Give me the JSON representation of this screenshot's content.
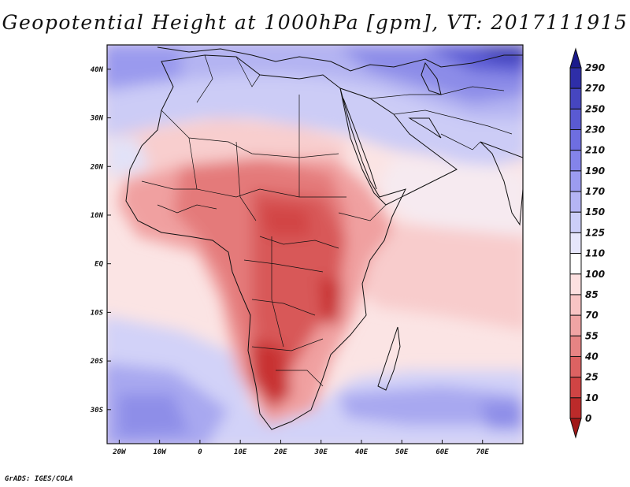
{
  "title": "Geopotential Height at 1000hPa [gpm], VT: 2017111915",
  "footer": "GrADS: IGES/COLA",
  "chart_data": {
    "type": "heatmap",
    "variable": "Geopotential Height at 1000hPa",
    "units": "gpm",
    "valid_time": "2017111915",
    "lon_range": [
      -23,
      80
    ],
    "lat_range": [
      -37,
      45
    ],
    "x_ticks": [
      "20W",
      "10W",
      "0",
      "10E",
      "20E",
      "30E",
      "40E",
      "50E",
      "60E",
      "70E"
    ],
    "y_ticks": [
      "40N",
      "30N",
      "20N",
      "10N",
      "EQ",
      "10S",
      "20S",
      "30S"
    ],
    "colorbar": {
      "levels": [
        "290",
        "270",
        "250",
        "230",
        "210",
        "190",
        "170",
        "150",
        "125",
        "110",
        "100",
        "85",
        "70",
        "55",
        "40",
        "25",
        "10",
        "0"
      ],
      "colors": [
        "#1a1a8c",
        "#2e2ea8",
        "#4646c0",
        "#5a5ad2",
        "#6e6ee0",
        "#8484ea",
        "#9c9cf0",
        "#b4b4f4",
        "#cccef8",
        "#e6e6fb",
        "#ffffff",
        "#fde0e0",
        "#f8c4c4",
        "#f0a4a4",
        "#e68484",
        "#dc6262",
        "#d04444",
        "#bc2a2a",
        "#a01818"
      ]
    }
  }
}
